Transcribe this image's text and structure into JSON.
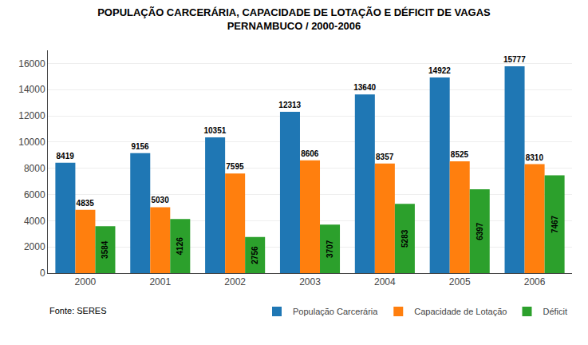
{
  "chart_data": {
    "type": "bar",
    "title": "POPULAÇÃO CARCERÁRIA, CAPACIDADE DE LOTAÇÃO E DÉFICIT DE VAGAS",
    "subtitle": "PERNAMBUCO / 2000-2006",
    "categories": [
      "2000",
      "2001",
      "2002",
      "2003",
      "2004",
      "2005",
      "2006"
    ],
    "series": [
      {
        "name": "População Carcerária",
        "values": [
          8419,
          9156,
          10351,
          12313,
          13640,
          14922,
          15777
        ]
      },
      {
        "name": "Capacidade de Lotação",
        "values": [
          4835,
          5030,
          7595,
          8606,
          8357,
          8525,
          8310
        ]
      },
      {
        "name": "Déficit",
        "values": [
          3584,
          4126,
          2756,
          3707,
          5283,
          6397,
          7467
        ]
      }
    ],
    "ylim": [
      0,
      17000
    ],
    "yticks": [
      0,
      2000,
      4000,
      6000,
      8000,
      10000,
      12000,
      14000,
      16000
    ],
    "grid": true,
    "legend": "bottom right",
    "data_labels": true,
    "annotations": [
      "Fonte: SERES"
    ]
  }
}
